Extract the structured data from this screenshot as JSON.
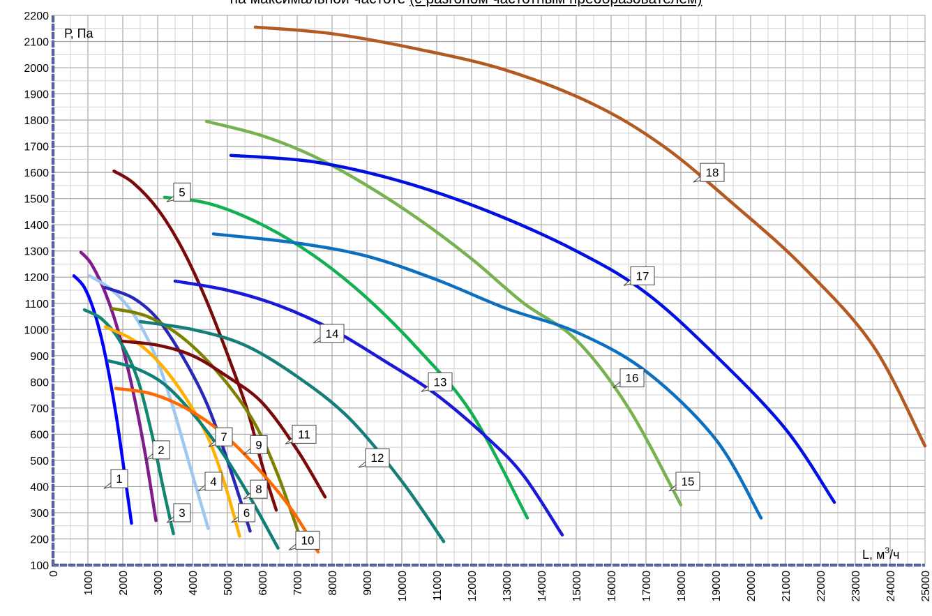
{
  "chart_data": {
    "type": "line",
    "title_prefix": "на максимальной частоте",
    "title_underlined": "(с разгоном частотным преобразователем)",
    "ylabel": "Р, Па",
    "xlabel": "L, м",
    "xlabel_sup": "3",
    "xlabel_suffix": "/ч",
    "xlim": [
      0,
      25000
    ],
    "ylim": [
      100,
      2200
    ],
    "xticks": [
      "0",
      "1000",
      "2000",
      "3000",
      "4000",
      "5000",
      "6000",
      "7000",
      "8000",
      "9000",
      "10000",
      "11000",
      "12000",
      "13000",
      "14000",
      "15000",
      "16000",
      "17000",
      "18000",
      "19000",
      "20000",
      "21000",
      "22000",
      "23000",
      "24000",
      "25000"
    ],
    "yticks": [
      "100",
      "200",
      "300",
      "400",
      "500",
      "600",
      "700",
      "800",
      "900",
      "1000",
      "1100",
      "1200",
      "1300",
      "1400",
      "1500",
      "1600",
      "1700",
      "1800",
      "1900",
      "2000",
      "2100",
      "2200"
    ],
    "grid": true,
    "series": [
      {
        "name": "1",
        "color": "#0000ff",
        "points": [
          [
            600,
            1205
          ],
          [
            900,
            1160
          ],
          [
            1200,
            1060
          ],
          [
            1500,
            900
          ],
          [
            1800,
            680
          ],
          [
            2050,
            450
          ],
          [
            2250,
            260
          ]
        ],
        "label_at": [
          1900,
          430
        ]
      },
      {
        "name": "2",
        "color": "#7f1b8a",
        "points": [
          [
            800,
            1295
          ],
          [
            1100,
            1250
          ],
          [
            1500,
            1140
          ],
          [
            1900,
            980
          ],
          [
            2300,
            760
          ],
          [
            2650,
            520
          ],
          [
            2950,
            270
          ]
        ],
        "label_at": [
          3100,
          540
        ]
      },
      {
        "name": "3",
        "color": "#13866f",
        "points": [
          [
            900,
            1075
          ],
          [
            1400,
            1040
          ],
          [
            1900,
            960
          ],
          [
            2400,
            820
          ],
          [
            2800,
            620
          ],
          [
            3150,
            400
          ],
          [
            3450,
            220
          ]
        ],
        "label_at": [
          3700,
          300
        ]
      },
      {
        "name": "4",
        "color": "#9ec8f0",
        "points": [
          [
            1050,
            1205
          ],
          [
            1700,
            1150
          ],
          [
            2300,
            1060
          ],
          [
            2900,
            910
          ],
          [
            3400,
            720
          ],
          [
            3900,
            490
          ],
          [
            4450,
            240
          ]
        ],
        "label_at": [
          4600,
          420
        ]
      },
      {
        "name": "5",
        "color": "#7a0a0a",
        "points": [
          [
            1750,
            1605
          ],
          [
            2300,
            1560
          ],
          [
            3000,
            1460
          ],
          [
            3700,
            1310
          ],
          [
            4400,
            1110
          ],
          [
            5100,
            870
          ],
          [
            5600,
            680
          ],
          [
            6000,
            480
          ],
          [
            6400,
            310
          ]
        ],
        "label_at": [
          3700,
          1525
        ]
      },
      {
        "name": "6",
        "color": "#2828b8",
        "points": [
          [
            1500,
            1160
          ],
          [
            2300,
            1120
          ],
          [
            3000,
            1040
          ],
          [
            3700,
            900
          ],
          [
            4400,
            720
          ],
          [
            5000,
            500
          ],
          [
            5650,
            230
          ]
        ],
        "label_at": [
          5550,
          300
        ]
      },
      {
        "name": "7",
        "color": "#ffb000",
        "points": [
          [
            1500,
            1010
          ],
          [
            2300,
            960
          ],
          [
            3000,
            880
          ],
          [
            3700,
            760
          ],
          [
            4400,
            600
          ],
          [
            4900,
            420
          ],
          [
            5350,
            210
          ]
        ],
        "label_at": [
          4900,
          590
        ]
      },
      {
        "name": "8",
        "color": "#0f7f78",
        "points": [
          [
            1600,
            880
          ],
          [
            2400,
            850
          ],
          [
            3200,
            790
          ],
          [
            4000,
            680
          ],
          [
            4800,
            540
          ],
          [
            5600,
            370
          ],
          [
            6450,
            165
          ]
        ],
        "label_at": [
          5900,
          390
        ]
      },
      {
        "name": "9",
        "color": "#808000",
        "points": [
          [
            1700,
            1080
          ],
          [
            2700,
            1050
          ],
          [
            3700,
            970
          ],
          [
            4700,
            840
          ],
          [
            5700,
            660
          ],
          [
            6400,
            460
          ],
          [
            7100,
            200
          ]
        ],
        "label_at": [
          5900,
          560
        ]
      },
      {
        "name": "10",
        "color": "#ff6a00",
        "points": [
          [
            1800,
            775
          ],
          [
            2800,
            755
          ],
          [
            3800,
            700
          ],
          [
            4800,
            610
          ],
          [
            5800,
            480
          ],
          [
            6800,
            320
          ],
          [
            7600,
            150
          ]
        ],
        "label_at": [
          7300,
          195
        ]
      },
      {
        "name": "11",
        "color": "#7a0a0a",
        "points": [
          [
            2000,
            955
          ],
          [
            3000,
            940
          ],
          [
            4000,
            900
          ],
          [
            5000,
            820
          ],
          [
            6000,
            720
          ],
          [
            7000,
            540
          ],
          [
            7800,
            360
          ]
        ],
        "label_at": [
          7200,
          600
        ]
      },
      {
        "name": "12",
        "color": "#157e78",
        "points": [
          [
            2500,
            1030
          ],
          [
            4000,
            1000
          ],
          [
            5500,
            940
          ],
          [
            7000,
            820
          ],
          [
            8500,
            660
          ],
          [
            10000,
            420
          ],
          [
            11200,
            190
          ]
        ],
        "label_at": [
          9300,
          510
        ]
      },
      {
        "name": "13",
        "color": "#11b050",
        "points": [
          [
            3200,
            1505
          ],
          [
            4500,
            1480
          ],
          [
            6000,
            1400
          ],
          [
            7500,
            1280
          ],
          [
            9000,
            1120
          ],
          [
            10500,
            920
          ],
          [
            12000,
            680
          ],
          [
            13600,
            280
          ]
        ],
        "label_at": [
          11100,
          800
        ]
      },
      {
        "name": "14",
        "color": "#1a1ad6",
        "points": [
          [
            3500,
            1185
          ],
          [
            5000,
            1150
          ],
          [
            6500,
            1090
          ],
          [
            8000,
            1000
          ],
          [
            9500,
            880
          ],
          [
            11000,
            750
          ],
          [
            12500,
            580
          ],
          [
            13500,
            440
          ],
          [
            14600,
            215
          ]
        ],
        "label_at": [
          8000,
          985
        ]
      },
      {
        "name": "15",
        "color": "#76b250",
        "points": [
          [
            4400,
            1795
          ],
          [
            6000,
            1740
          ],
          [
            7500,
            1660
          ],
          [
            9000,
            1550
          ],
          [
            10500,
            1420
          ],
          [
            12000,
            1270
          ],
          [
            13500,
            1100
          ],
          [
            15000,
            960
          ],
          [
            16500,
            700
          ],
          [
            18000,
            330
          ]
        ],
        "label_at": [
          18200,
          420
        ]
      },
      {
        "name": "16",
        "color": "#0c6fc0",
        "points": [
          [
            4600,
            1365
          ],
          [
            7000,
            1330
          ],
          [
            9000,
            1280
          ],
          [
            11000,
            1190
          ],
          [
            13000,
            1080
          ],
          [
            15000,
            990
          ],
          [
            17000,
            840
          ],
          [
            19000,
            580
          ],
          [
            20300,
            280
          ]
        ],
        "label_at": [
          16600,
          815
        ]
      },
      {
        "name": "17",
        "color": "#0010e0",
        "points": [
          [
            5100,
            1665
          ],
          [
            7500,
            1640
          ],
          [
            10000,
            1565
          ],
          [
            12500,
            1450
          ],
          [
            15000,
            1300
          ],
          [
            17000,
            1140
          ],
          [
            19000,
            900
          ],
          [
            21000,
            620
          ],
          [
            22400,
            340
          ]
        ],
        "label_at": [
          16900,
          1205
        ]
      },
      {
        "name": "18",
        "color": "#b35a22",
        "points": [
          [
            5800,
            2155
          ],
          [
            8000,
            2130
          ],
          [
            10500,
            2070
          ],
          [
            13000,
            1990
          ],
          [
            15500,
            1860
          ],
          [
            17500,
            1700
          ],
          [
            19500,
            1480
          ],
          [
            21500,
            1240
          ],
          [
            23500,
            940
          ],
          [
            25000,
            555
          ]
        ],
        "label_at": [
          18900,
          1600
        ]
      }
    ]
  }
}
